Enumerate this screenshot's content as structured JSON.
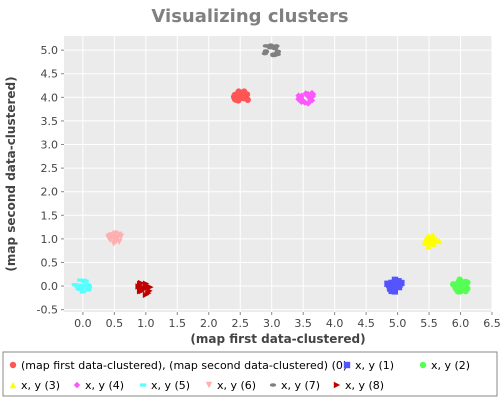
{
  "chart_data": {
    "type": "scatter",
    "title": "Visualizing clusters",
    "xlabel": "(map first data-clustered)",
    "ylabel": "(map second data-clustered)",
    "xlim": [
      -0.3,
      6.5
    ],
    "ylim": [
      -0.55,
      5.3
    ],
    "xticks": [
      "0.0",
      "0.5",
      "1.0",
      "1.5",
      "2.0",
      "2.5",
      "3.0",
      "3.5",
      "4.0",
      "4.5",
      "5.0",
      "5.5",
      "6.0",
      "6.5"
    ],
    "yticks": [
      "-0.5",
      "0.0",
      "0.5",
      "1.0",
      "1.5",
      "2.0",
      "2.5",
      "3.0",
      "3.5",
      "4.0",
      "4.5",
      "5.0"
    ],
    "grid": true,
    "legend_position": "bottom",
    "series": [
      {
        "name": "(map first data-clustered), (map second data-clustered) (0)",
        "color": "#ff5555",
        "marker": "circle",
        "center": [
          2.5,
          4.0
        ],
        "count": 18
      },
      {
        "name": "x, y (1)",
        "color": "#5555ff",
        "marker": "square",
        "center": [
          4.95,
          0.0
        ],
        "count": 18
      },
      {
        "name": "x, y (2)",
        "color": "#55ff55",
        "marker": "circle",
        "center": [
          6.0,
          0.0
        ],
        "count": 18
      },
      {
        "name": "x, y (3)",
        "color": "#ffff00",
        "marker": "triangle-up",
        "center": [
          5.55,
          0.95
        ],
        "count": 18
      },
      {
        "name": "x, y (4)",
        "color": "#ff55ff",
        "marker": "diamond",
        "center": [
          3.55,
          4.0
        ],
        "count": 18
      },
      {
        "name": "x, y (5)",
        "color": "#55ffff",
        "marker": "hbar",
        "center": [
          0.0,
          0.0
        ],
        "count": 18
      },
      {
        "name": "x, y (6)",
        "color": "#ffafaf",
        "marker": "triangle-down",
        "center": [
          0.5,
          1.0
        ],
        "count": 18
      },
      {
        "name": "x, y (7)",
        "color": "#808080",
        "marker": "ellipse",
        "center": [
          3.0,
          5.0
        ],
        "count": 18
      },
      {
        "name": "x, y (8)",
        "color": "#c00000",
        "marker": "triangle-right",
        "center": [
          1.0,
          -0.05
        ],
        "count": 18
      }
    ]
  }
}
